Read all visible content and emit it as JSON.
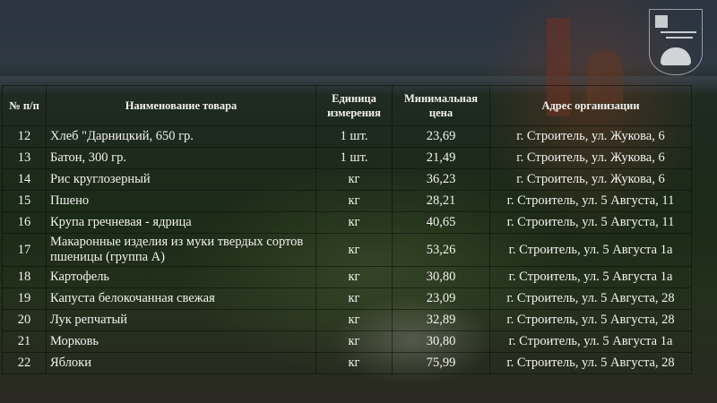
{
  "logo": {
    "name": "coat-of-arms",
    "text": ""
  },
  "table": {
    "headers": {
      "num": "№ п/п",
      "name": "Наименование товара",
      "unit": "Единица измерения",
      "price": "Минимальная цена",
      "address": "Адрес организации"
    },
    "rows": [
      {
        "num": "12",
        "name": "Хлеб \"Дарницкий, 650 гр.",
        "unit": "1 шт.",
        "price": "23,69",
        "address": "г. Строитель, ул. Жукова, 6"
      },
      {
        "num": "13",
        "name": "Батон, 300 гр.",
        "unit": "1 шт.",
        "price": "21,49",
        "address": "г. Строитель, ул. Жукова, 6"
      },
      {
        "num": "14",
        "name": "Рис круглозерный",
        "unit": "кг",
        "price": "36,23",
        "address": "г. Строитель, ул. Жукова, 6"
      },
      {
        "num": "15",
        "name": "Пшено",
        "unit": "кг",
        "price": "28,21",
        "address": "г. Строитель, ул. 5 Августа, 11"
      },
      {
        "num": "16",
        "name": "Крупа гречневая - ядрица",
        "unit": "кг",
        "price": "40,65",
        "address": "г. Строитель, ул. 5 Августа, 11"
      },
      {
        "num": "17",
        "name": "Макаронные изделия из муки твердых сортов пшеницы (группа А)",
        "unit": "кг",
        "price": "53,26",
        "address": "г. Строитель, ул. 5 Августа 1а"
      },
      {
        "num": "18",
        "name": "Картофель",
        "unit": "кг",
        "price": "30,80",
        "address": "г. Строитель, ул. 5 Августа 1а"
      },
      {
        "num": "19",
        "name": "Капуста белокочанная свежая",
        "unit": "кг",
        "price": "23,09",
        "address": "г. Строитель, ул. 5 Августа, 28"
      },
      {
        "num": "20",
        "name": "Лук репчатый",
        "unit": "кг",
        "price": "32,89",
        "address": "г. Строитель, ул. 5 Августа, 28"
      },
      {
        "num": "21",
        "name": "Морковь",
        "unit": "кг",
        "price": "30,80",
        "address": "г. Строитель, ул. 5 Августа 1а"
      },
      {
        "num": "22",
        "name": "Яблоки",
        "unit": "кг",
        "price": "75,99",
        "address": "г. Строитель, ул. 5 Августа, 28"
      }
    ]
  }
}
